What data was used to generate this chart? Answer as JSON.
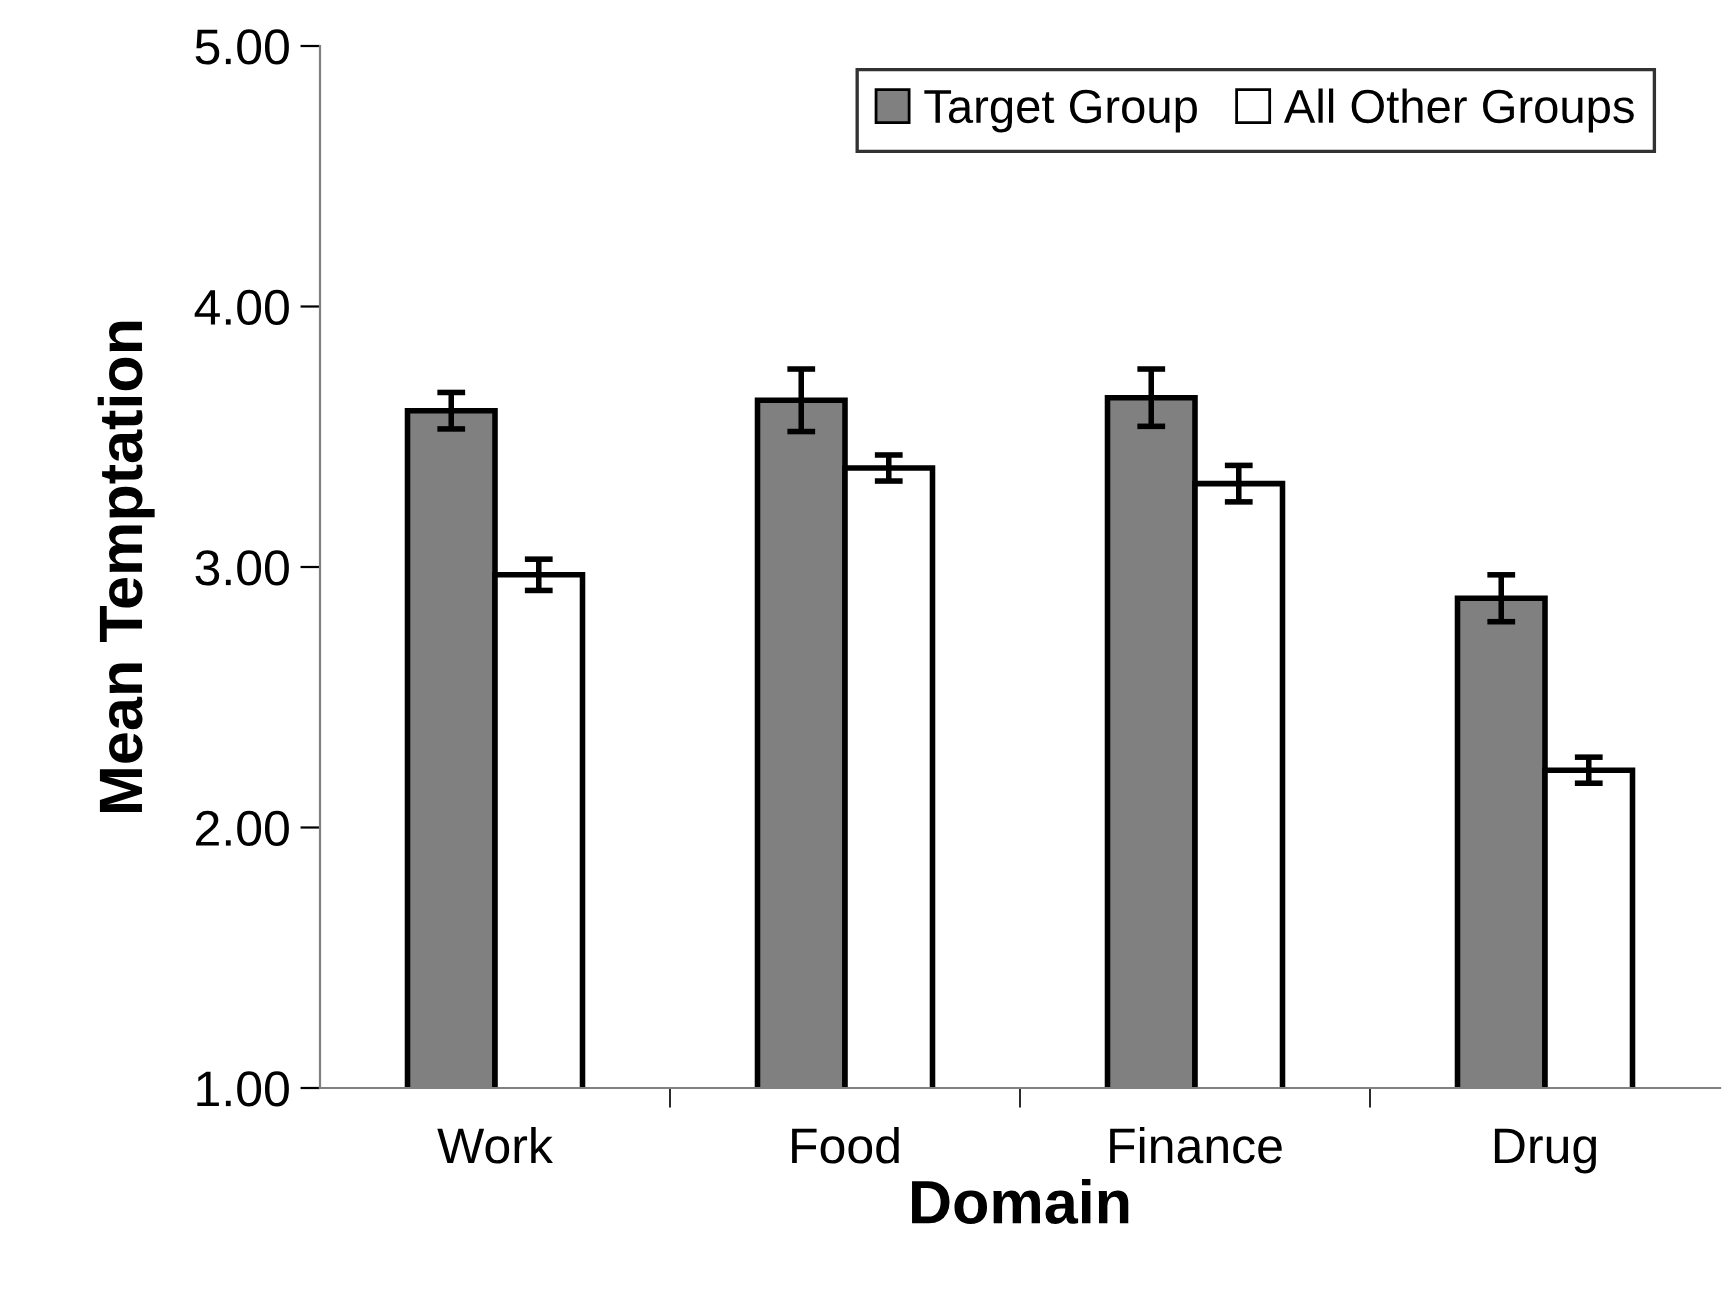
{
  "chart_data": {
    "type": "bar",
    "xlabel": "Domain",
    "ylabel": "Mean Temptation",
    "categories": [
      "Work",
      "Food",
      "Finance",
      "Drug"
    ],
    "series": [
      {
        "name": "Target Group",
        "color": "#808080",
        "values": [
          3.6,
          3.64,
          3.65,
          2.88
        ],
        "errors": [
          0.07,
          0.12,
          0.11,
          0.09
        ]
      },
      {
        "name": "All Other Groups",
        "color": "#ffffff",
        "values": [
          2.97,
          3.38,
          3.32,
          2.22
        ],
        "errors": [
          0.06,
          0.05,
          0.07,
          0.05
        ]
      }
    ],
    "ylim": [
      1,
      5
    ],
    "yticks": [
      {
        "value": 1,
        "label": "1.00"
      },
      {
        "value": 2,
        "label": "2.00"
      },
      {
        "value": 3,
        "label": "3.00"
      },
      {
        "value": 4,
        "label": "4.00"
      },
      {
        "value": 5,
        "label": "5.00"
      }
    ],
    "grid": false,
    "legend": "top right"
  }
}
